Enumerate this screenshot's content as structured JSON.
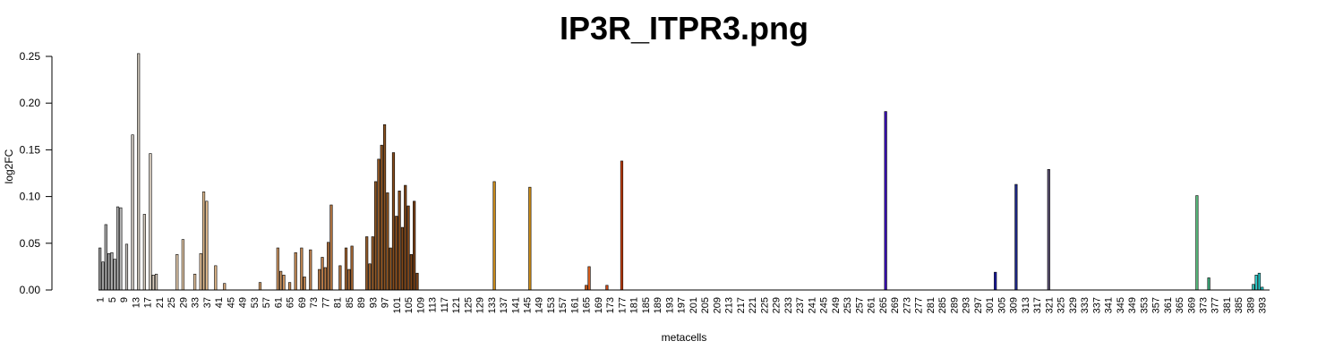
{
  "chart_data": {
    "type": "bar",
    "title": "IP3R_ITPR3.png",
    "xlabel": "metacells",
    "ylabel": "log2FC",
    "ylim": [
      0,
      0.25
    ],
    "yticks": [
      "0.00",
      "0.05",
      "0.10",
      "0.15",
      "0.20",
      "0.25"
    ],
    "x_range": [
      1,
      395
    ],
    "xtick_start": 1,
    "xtick_step": 4,
    "xtick_end": 393,
    "grid": false,
    "legend": "none",
    "bars": [
      {
        "x": 1,
        "y": 0.045,
        "color": "#9a9a9a"
      },
      {
        "x": 2,
        "y": 0.03,
        "color": "#a3a3a3"
      },
      {
        "x": 3,
        "y": 0.07,
        "color": "#a8a8a8"
      },
      {
        "x": 4,
        "y": 0.039,
        "color": "#acacac"
      },
      {
        "x": 5,
        "y": 0.04,
        "color": "#b0b0b0"
      },
      {
        "x": 6,
        "y": 0.033,
        "color": "#b2b2b2"
      },
      {
        "x": 7,
        "y": 0.089,
        "color": "#b6b6b6"
      },
      {
        "x": 8,
        "y": 0.088,
        "color": "#b9b9b9"
      },
      {
        "x": 10,
        "y": 0.049,
        "color": "#bfbcb8"
      },
      {
        "x": 12,
        "y": 0.166,
        "color": "#c6c0b8"
      },
      {
        "x": 14,
        "y": 0.253,
        "color": "#ccc4ba"
      },
      {
        "x": 16,
        "y": 0.081,
        "color": "#d2c8bb"
      },
      {
        "x": 18,
        "y": 0.146,
        "color": "#d6cbbd"
      },
      {
        "x": 19,
        "y": 0.016,
        "color": "#d8ccbd"
      },
      {
        "x": 20,
        "y": 0.017,
        "color": "#dbcebf"
      },
      {
        "x": 27,
        "y": 0.038,
        "color": "#e5cdb0"
      },
      {
        "x": 29,
        "y": 0.054,
        "color": "#e7cbaa"
      },
      {
        "x": 33,
        "y": 0.017,
        "color": "#e6c5a0"
      },
      {
        "x": 35,
        "y": 0.039,
        "color": "#e4c198"
      },
      {
        "x": 36,
        "y": 0.105,
        "color": "#e3be93"
      },
      {
        "x": 37,
        "y": 0.095,
        "color": "#e1bb8e"
      },
      {
        "x": 40,
        "y": 0.026,
        "color": "#ddb487"
      },
      {
        "x": 43,
        "y": 0.007,
        "color": "#d9ad80"
      },
      {
        "x": 55,
        "y": 0.008,
        "color": "#d3a06e"
      },
      {
        "x": 61,
        "y": 0.045,
        "color": "#cf9864"
      },
      {
        "x": 62,
        "y": 0.02,
        "color": "#ce9662"
      },
      {
        "x": 63,
        "y": 0.016,
        "color": "#cc9460"
      },
      {
        "x": 65,
        "y": 0.008,
        "color": "#c9905c"
      },
      {
        "x": 67,
        "y": 0.04,
        "color": "#c68c58"
      },
      {
        "x": 69,
        "y": 0.045,
        "color": "#c38854"
      },
      {
        "x": 70,
        "y": 0.014,
        "color": "#c18652"
      },
      {
        "x": 72,
        "y": 0.043,
        "color": "#be8250"
      },
      {
        "x": 75,
        "y": 0.022,
        "color": "#b97c4a"
      },
      {
        "x": 76,
        "y": 0.035,
        "color": "#b77a48"
      },
      {
        "x": 77,
        "y": 0.024,
        "color": "#b57845"
      },
      {
        "x": 78,
        "y": 0.051,
        "color": "#b37643"
      },
      {
        "x": 79,
        "y": 0.091,
        "color": "#b17440"
      },
      {
        "x": 82,
        "y": 0.026,
        "color": "#ab6e3a"
      },
      {
        "x": 84,
        "y": 0.045,
        "color": "#a76a36"
      },
      {
        "x": 85,
        "y": 0.022,
        "color": "#a56834"
      },
      {
        "x": 86,
        "y": 0.047,
        "color": "#a36632"
      },
      {
        "x": 91,
        "y": 0.057,
        "color": "#99602e"
      },
      {
        "x": 92,
        "y": 0.028,
        "color": "#975e2c"
      },
      {
        "x": 93,
        "y": 0.057,
        "color": "#955c2a"
      },
      {
        "x": 94,
        "y": 0.116,
        "color": "#935a28"
      },
      {
        "x": 95,
        "y": 0.14,
        "color": "#915826"
      },
      {
        "x": 96,
        "y": 0.155,
        "color": "#8f5624"
      },
      {
        "x": 97,
        "y": 0.177,
        "color": "#8d5422"
      },
      {
        "x": 98,
        "y": 0.104,
        "color": "#8b5220"
      },
      {
        "x": 99,
        "y": 0.045,
        "color": "#89501e"
      },
      {
        "x": 100,
        "y": 0.147,
        "color": "#874e1d"
      },
      {
        "x": 101,
        "y": 0.079,
        "color": "#854c1c"
      },
      {
        "x": 102,
        "y": 0.106,
        "color": "#834a1b"
      },
      {
        "x": 103,
        "y": 0.067,
        "color": "#81481a"
      },
      {
        "x": 104,
        "y": 0.112,
        "color": "#7f4619"
      },
      {
        "x": 105,
        "y": 0.09,
        "color": "#7d4418"
      },
      {
        "x": 106,
        "y": 0.038,
        "color": "#7b4217"
      },
      {
        "x": 107,
        "y": 0.095,
        "color": "#794016"
      },
      {
        "x": 108,
        "y": 0.018,
        "color": "#773e15"
      },
      {
        "x": 134,
        "y": 0.116,
        "color": "#c98a1a"
      },
      {
        "x": 146,
        "y": 0.11,
        "color": "#d18f16"
      },
      {
        "x": 165,
        "y": 0.005,
        "color": "#d9641e"
      },
      {
        "x": 166,
        "y": 0.025,
        "color": "#d65c1c"
      },
      {
        "x": 172,
        "y": 0.005,
        "color": "#cf4a16"
      },
      {
        "x": 177,
        "y": 0.138,
        "color": "#c84012"
      },
      {
        "x": 266,
        "y": 0.191,
        "color": "#3a10b8"
      },
      {
        "x": 303,
        "y": 0.019,
        "color": "#1a1aa0"
      },
      {
        "x": 310,
        "y": 0.113,
        "color": "#1f2a8a"
      },
      {
        "x": 321,
        "y": 0.129,
        "color": "#5a5070"
      },
      {
        "x": 371,
        "y": 0.101,
        "color": "#5ac080"
      },
      {
        "x": 375,
        "y": 0.013,
        "color": "#3aa878"
      },
      {
        "x": 390,
        "y": 0.006,
        "color": "#3ac8c0"
      },
      {
        "x": 391,
        "y": 0.016,
        "color": "#30cccc"
      },
      {
        "x": 392,
        "y": 0.018,
        "color": "#28d0d0"
      },
      {
        "x": 393,
        "y": 0.003,
        "color": "#20d4d4"
      }
    ]
  }
}
